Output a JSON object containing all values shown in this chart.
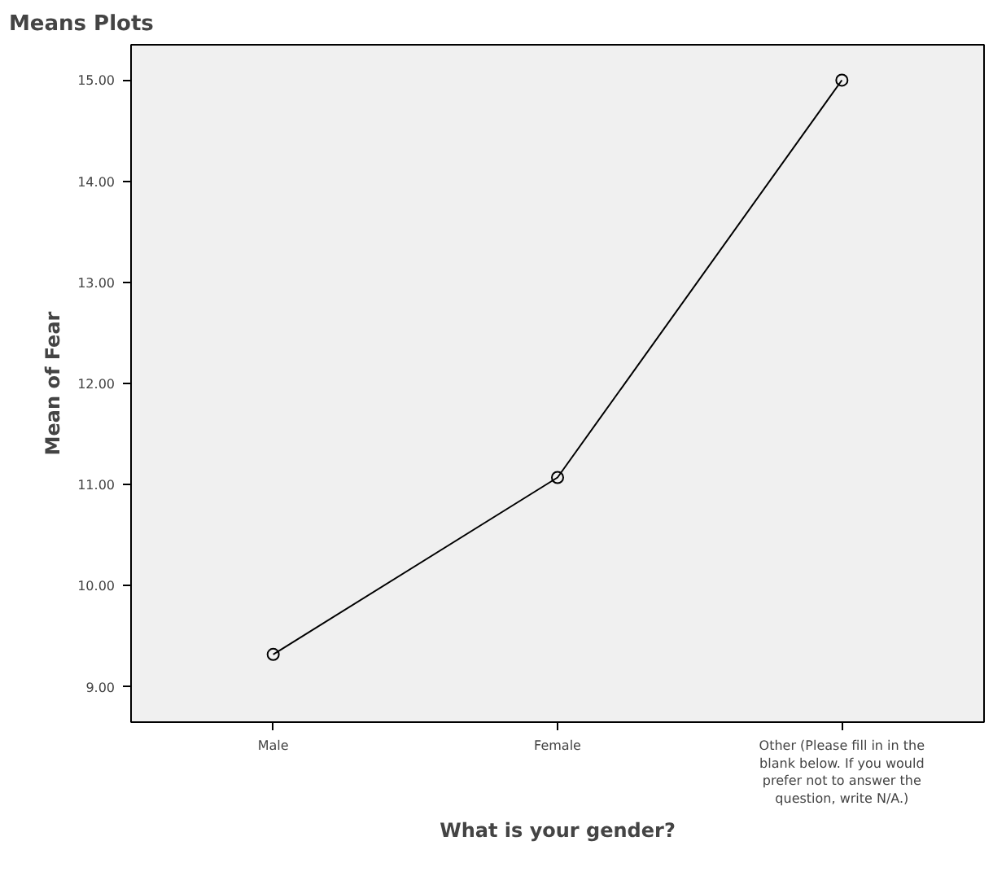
{
  "chart_data": {
    "type": "line",
    "title": "Means Plots",
    "xlabel": "What is your gender?",
    "ylabel": "Mean of Fear",
    "categories": [
      "Male",
      "Female",
      "Other (Please fill in in the blank below. If you would prefer not to answer the question, write N/A.)"
    ],
    "series": [
      {
        "color": "#000000",
        "values": [
          9.32,
          11.07,
          15.0
        ]
      }
    ],
    "ylim": [
      8.65,
      15.35
    ],
    "yticks": [
      {
        "value": 9,
        "label": "9.00"
      },
      {
        "value": 10,
        "label": "10.00"
      },
      {
        "value": 11,
        "label": "11.00"
      },
      {
        "value": 12,
        "label": "12.00"
      },
      {
        "value": 13,
        "label": "13.00"
      },
      {
        "value": 14,
        "label": "14.00"
      },
      {
        "value": 15,
        "label": "15.00"
      }
    ],
    "marker": "circle",
    "line_style": "solid"
  }
}
